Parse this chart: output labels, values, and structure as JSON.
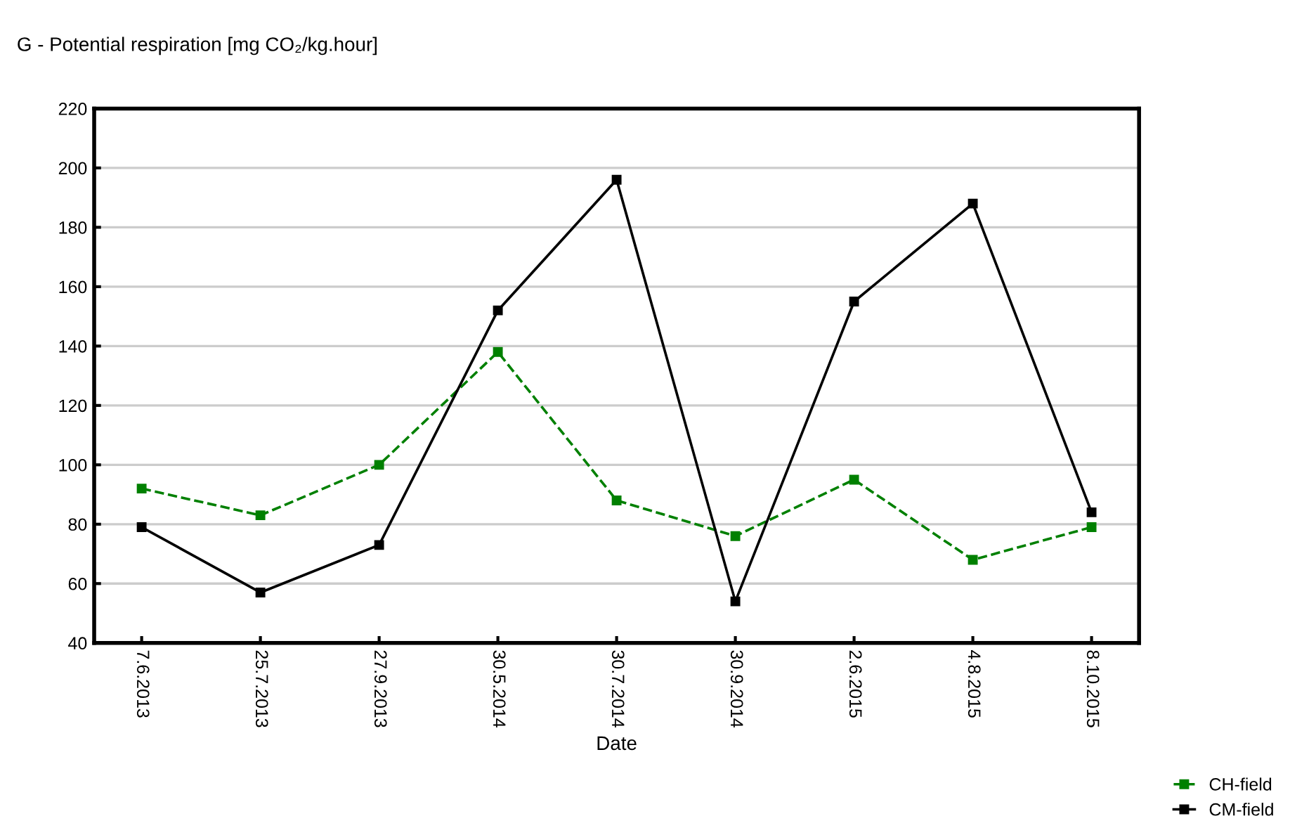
{
  "chart_data": {
    "type": "line",
    "title": "G - Potential respiration [mg CO₂/kg.hour]",
    "xlabel": "Date",
    "categories": [
      "7.6.2013",
      "25.7.2013",
      "27.9.2013",
      "30.5.2014",
      "30.7.2014",
      "30.9.2014",
      "2.6.2015",
      "4.8.2015",
      "8.10.2015"
    ],
    "series": [
      {
        "name": "CH-field",
        "color": "#008000",
        "line_style": "dashed",
        "values": [
          92,
          83,
          100,
          138,
          88,
          76,
          95,
          68,
          79
        ]
      },
      {
        "name": "CM-field",
        "color": "#000000",
        "line_style": "solid",
        "values": [
          79,
          57,
          73,
          152,
          196,
          54,
          155,
          188,
          84
        ]
      }
    ],
    "ylim": [
      40,
      220
    ],
    "yticks": [
      40,
      60,
      80,
      100,
      120,
      140,
      160,
      180,
      200,
      220
    ],
    "grid": "y",
    "legend": "bottom right",
    "marker": "square"
  }
}
